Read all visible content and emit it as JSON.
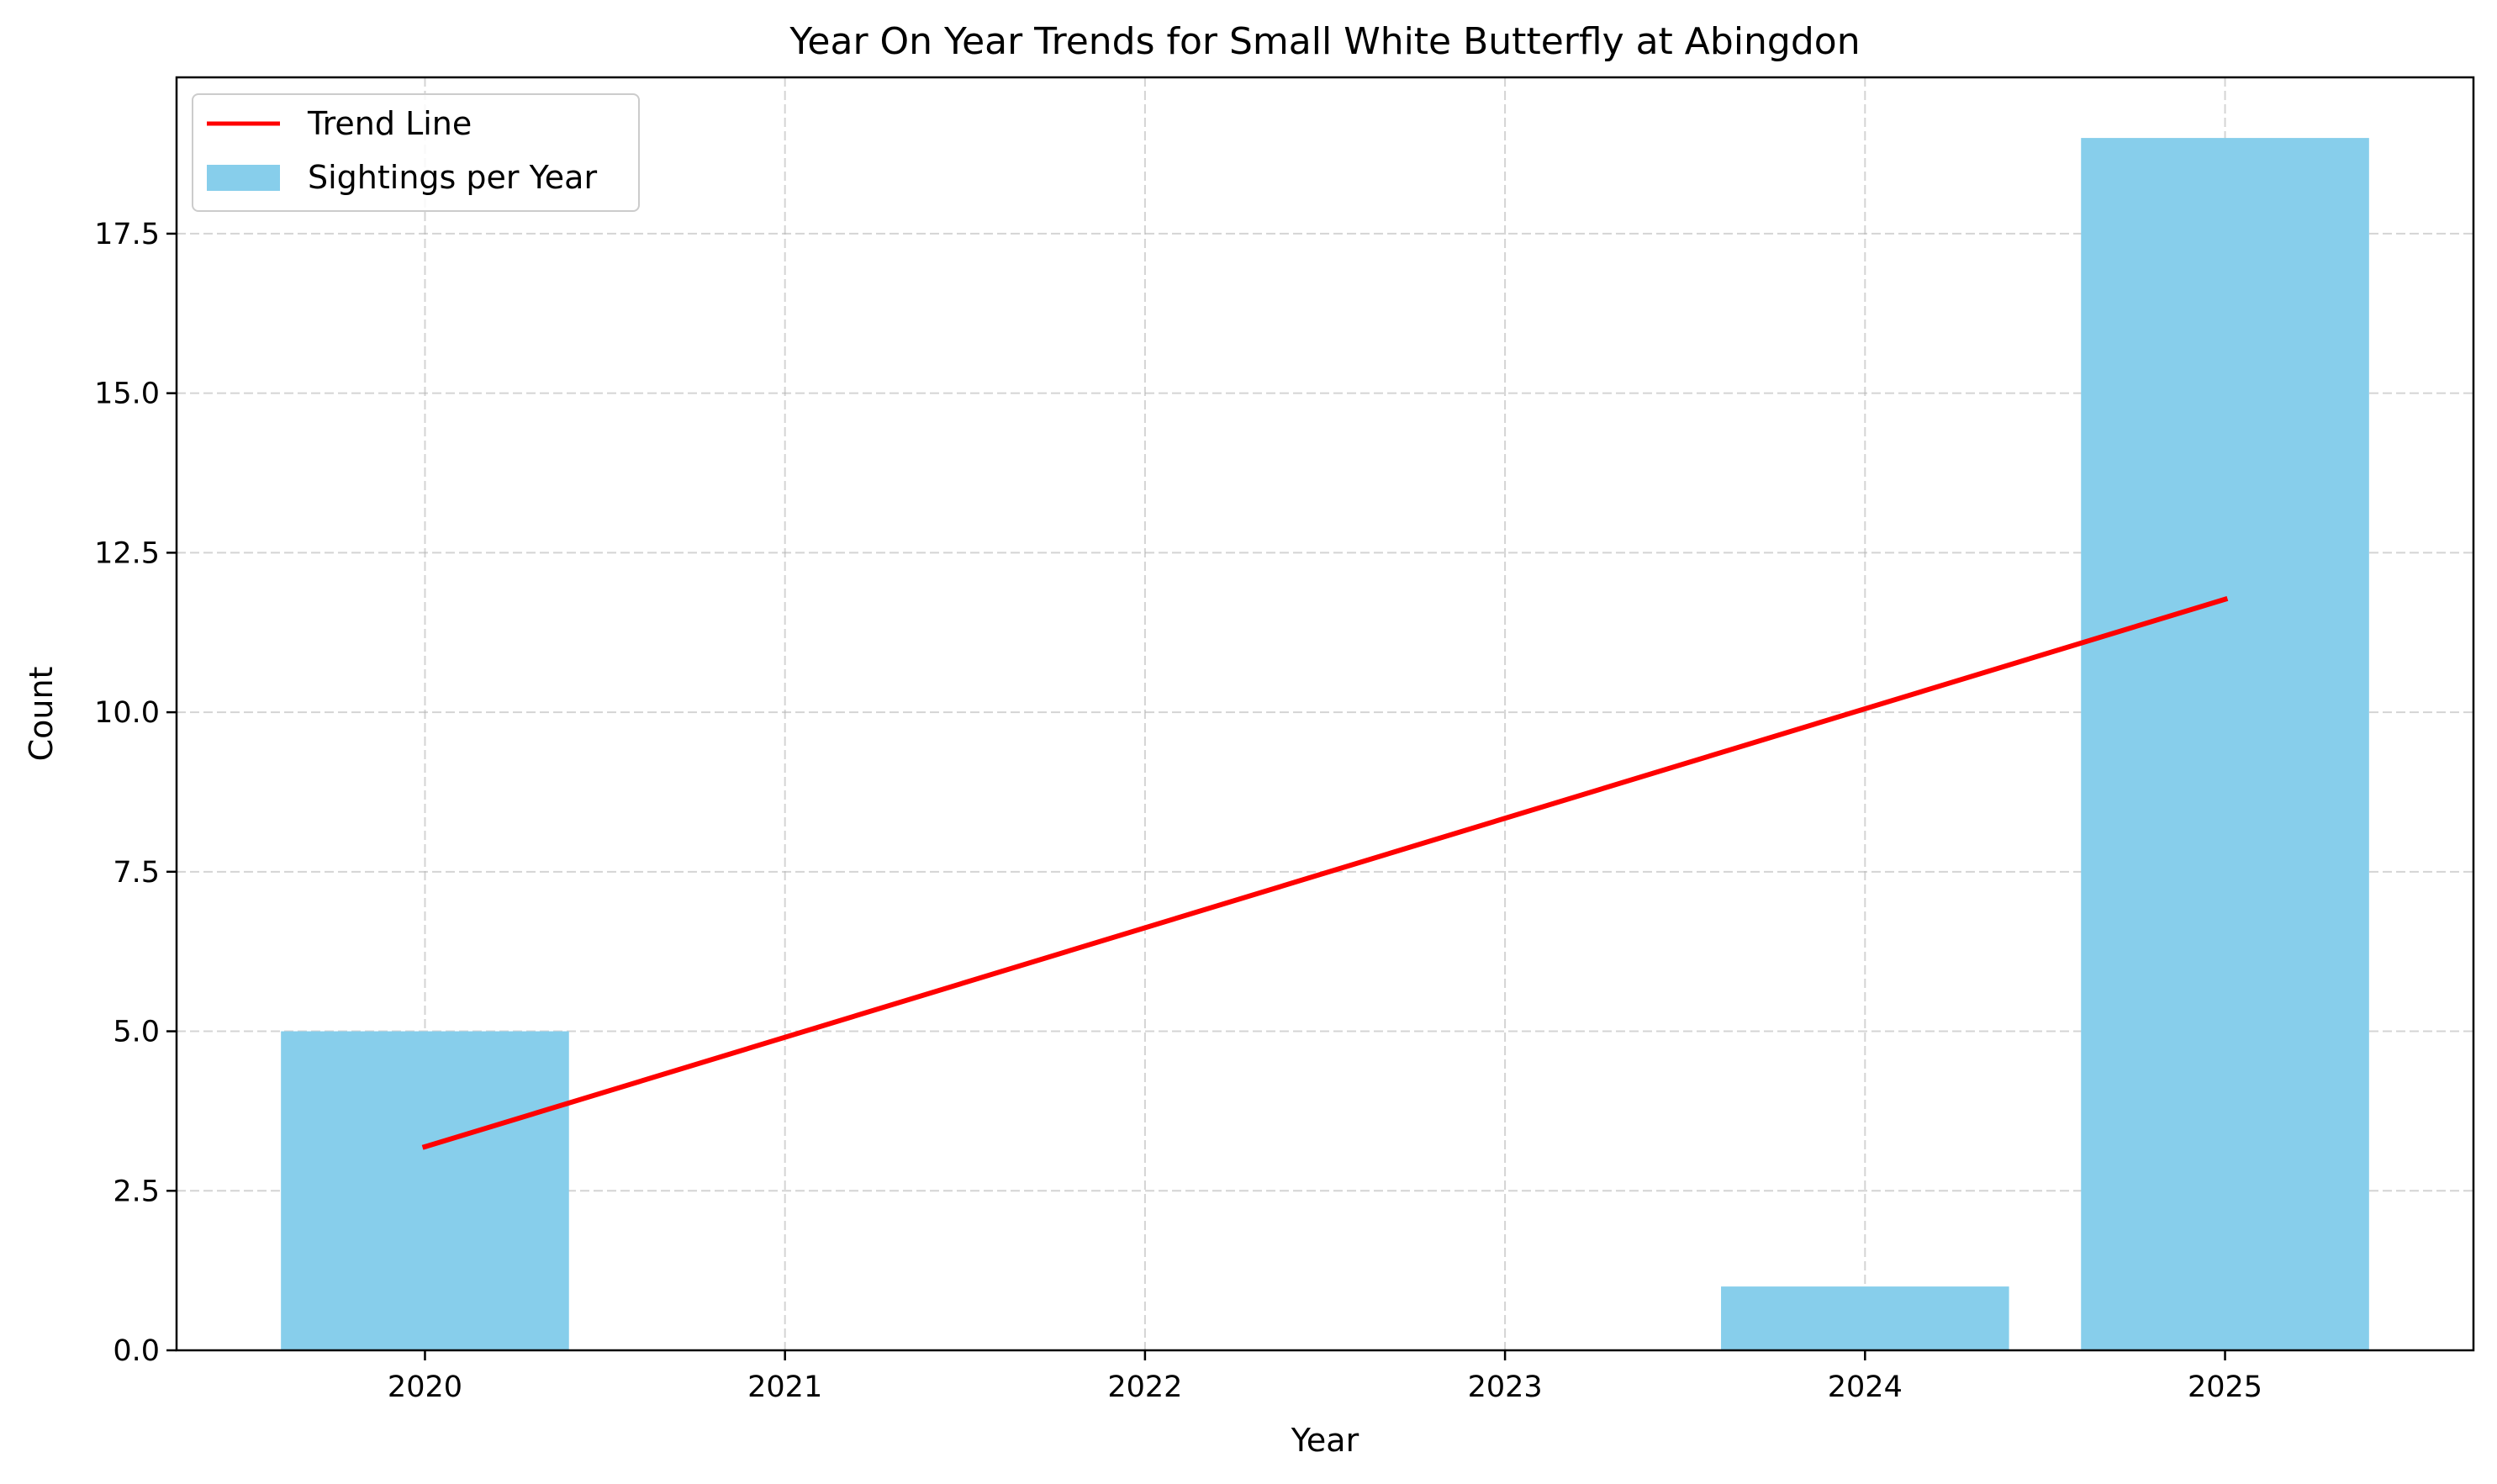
{
  "chart_data": {
    "type": "bar",
    "title": "Year On Year Trends for Small White Butterfly at Abingdon",
    "xlabel": "Year",
    "ylabel": "Count",
    "categories": [
      "2020",
      "2021",
      "2022",
      "2023",
      "2024",
      "2025"
    ],
    "series": [
      {
        "name": "Sightings per Year",
        "kind": "bar",
        "color": "#87CEEB",
        "values": [
          5,
          0,
          0,
          0,
          1,
          19
        ]
      },
      {
        "name": "Trend Line",
        "kind": "line",
        "color": "#FF0000",
        "x": [
          2020,
          2025
        ],
        "values": [
          3.19,
          11.77
        ]
      }
    ],
    "yticks": [
      "0.0",
      "2.5",
      "5.0",
      "7.5",
      "10.0",
      "12.5",
      "15.0",
      "17.5"
    ],
    "ylim": [
      0,
      19.95
    ],
    "xlim": [
      2019.31,
      2025.69
    ],
    "grid": true,
    "legend_position": "top-left"
  }
}
